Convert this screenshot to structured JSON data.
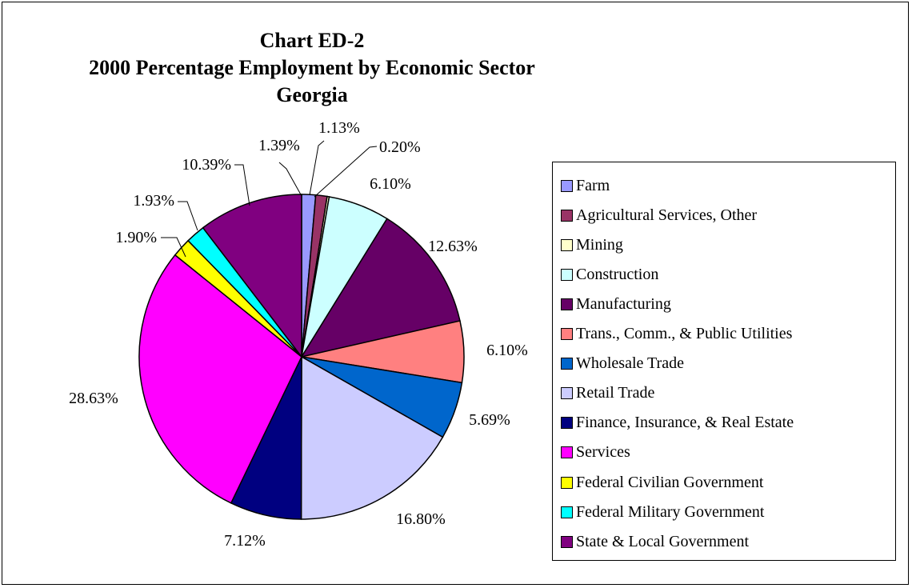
{
  "chart_data": {
    "type": "pie",
    "title_lines": [
      "Chart ED-2",
      "2000 Percentage Employment by Economic Sector",
      "Georgia"
    ],
    "legend_position": "right",
    "slices": [
      {
        "label": "Farm",
        "value": 1.39,
        "value_label": "1.39%",
        "color": "#9999FF"
      },
      {
        "label": "Agricultural Services, Other",
        "value": 1.13,
        "value_label": "1.13%",
        "color": "#993366"
      },
      {
        "label": "Mining",
        "value": 0.2,
        "value_label": "0.20%",
        "color": "#FFFFCC"
      },
      {
        "label": "Construction",
        "value": 6.1,
        "value_label": "6.10%",
        "color": "#CCFFFF"
      },
      {
        "label": "Manufacturing",
        "value": 12.63,
        "value_label": "12.63%",
        "color": "#660066"
      },
      {
        "label": "Trans., Comm., & Public Utilities",
        "value": 6.1,
        "value_label": "6.10%",
        "color": "#FF8080"
      },
      {
        "label": "Wholesale Trade",
        "value": 5.69,
        "value_label": "5.69%",
        "color": "#0066CC"
      },
      {
        "label": "Retail Trade",
        "value": 16.8,
        "value_label": "16.80%",
        "color": "#CCCCFF"
      },
      {
        "label": "Finance, Insurance, & Real Estate",
        "value": 7.12,
        "value_label": "7.12%",
        "color": "#000080"
      },
      {
        "label": "Services",
        "value": 28.63,
        "value_label": "28.63%",
        "color": "#FF00FF"
      },
      {
        "label": "Federal Civilian Government",
        "value": 1.9,
        "value_label": "1.90%",
        "color": "#FFFF00"
      },
      {
        "label": "Federal Military Government",
        "value": 1.93,
        "value_label": "1.93%",
        "color": "#00FFFF"
      },
      {
        "label": "State & Local Government",
        "value": 10.39,
        "value_label": "10.39%",
        "color": "#800080"
      }
    ]
  }
}
